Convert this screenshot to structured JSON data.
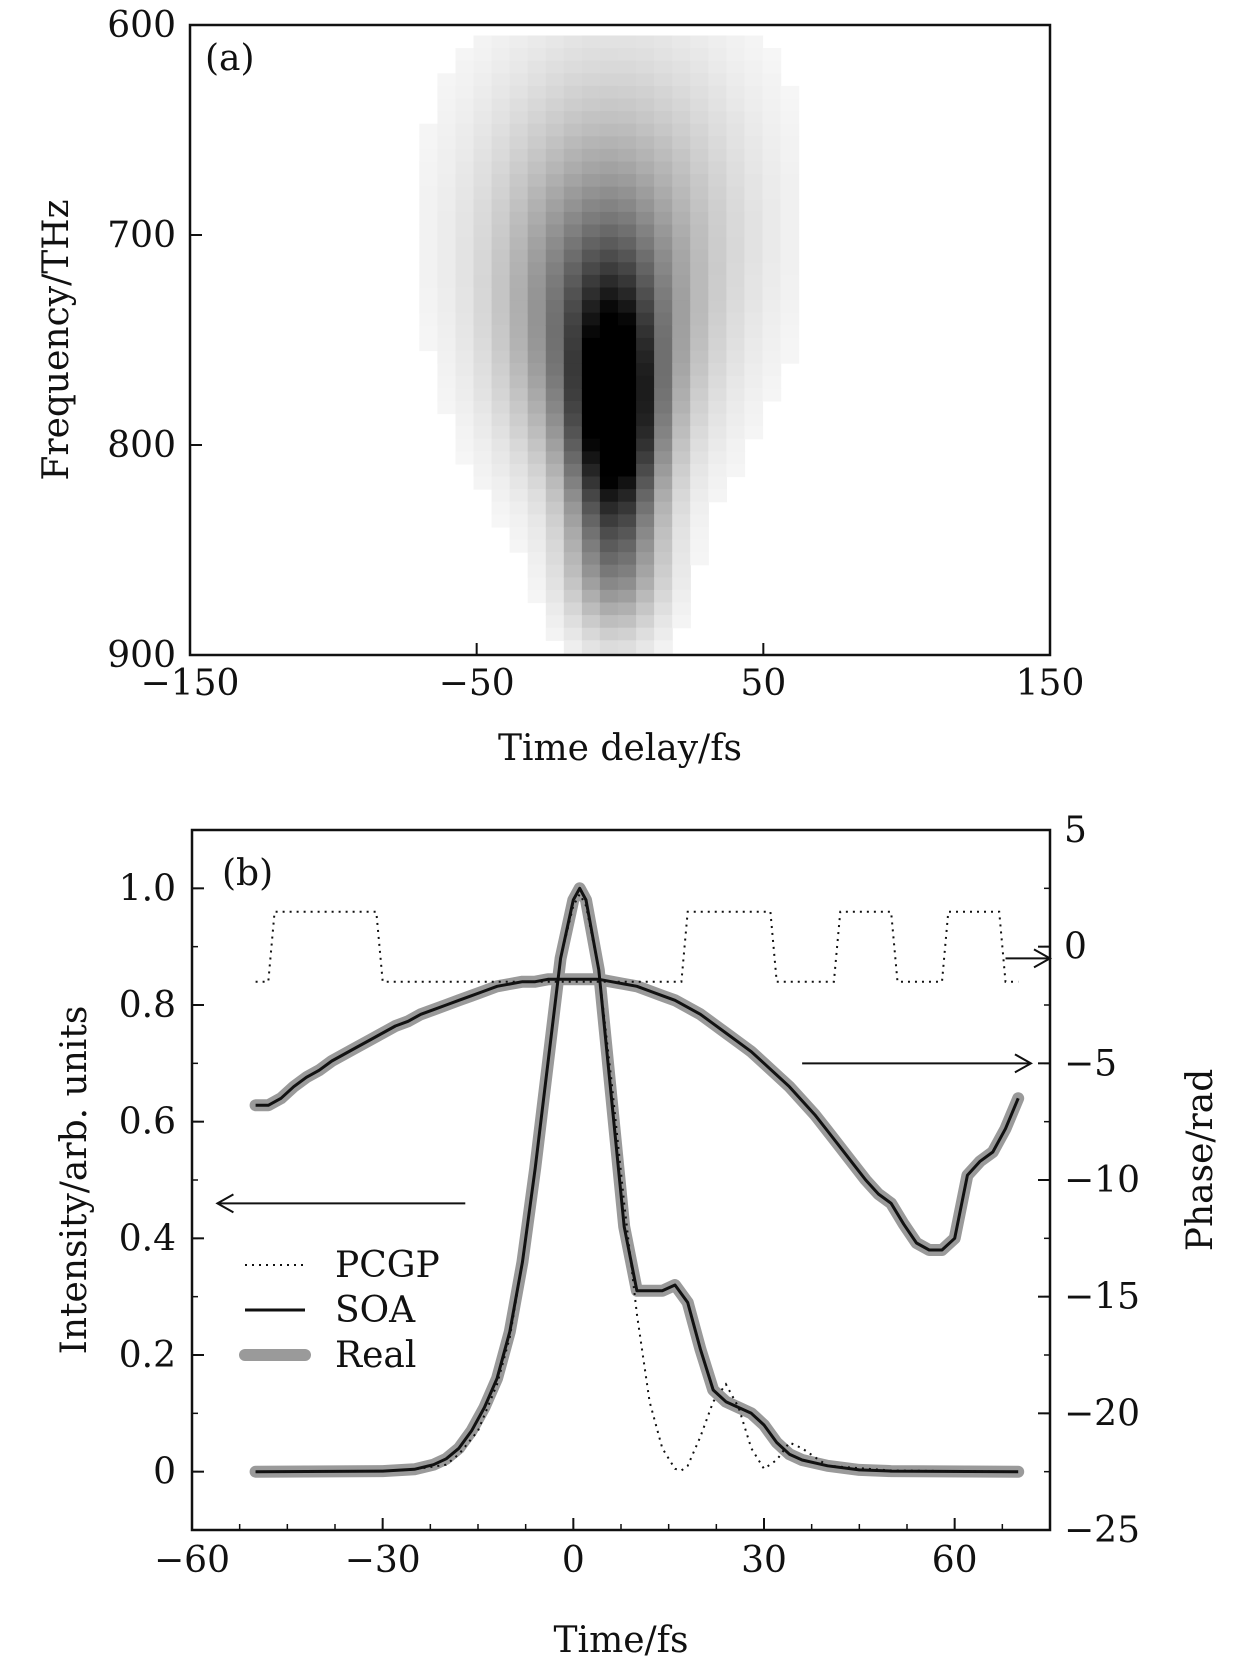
{
  "chart_data": [
    {
      "type": "heatmap",
      "panel_label": "(a)",
      "xlabel": "Time delay/fs",
      "ylabel": "Frequency/THz",
      "xlim": [
        -150,
        150
      ],
      "ylim": [
        600,
        900
      ],
      "y_inverted": true,
      "xticks": [
        -150,
        -50,
        50,
        150
      ],
      "xtick_labels": [
        "−150",
        "−50",
        "50",
        "150"
      ],
      "yticks": [
        600,
        700,
        800,
        900
      ],
      "ytick_labels": [
        "600",
        "700",
        "800",
        "900"
      ],
      "colormap": "white-to-black",
      "blobs": [
        {
          "t": -5,
          "f": 790,
          "st": 10,
          "sf": 42,
          "amp": 1.0
        },
        {
          "t": -10,
          "f": 745,
          "st": 20,
          "sf": 45,
          "amp": 0.45
        },
        {
          "t": -5,
          "f": 690,
          "st": 32,
          "sf": 58,
          "amp": 0.22
        },
        {
          "t": -5,
          "f": 860,
          "st": 12,
          "sf": 20,
          "amp": 0.18
        }
      ]
    },
    {
      "type": "line",
      "panel_label": "(b)",
      "xlabel": "Time/fs",
      "ylabel": "Intensity/arb. units",
      "y2label": "Phase/rad",
      "xlim": [
        -60,
        75
      ],
      "ylim": [
        -0.1,
        1.1
      ],
      "y2lim": [
        -25,
        5
      ],
      "xticks": [
        -60,
        -30,
        0,
        30,
        60
      ],
      "xtick_labels": [
        "−60",
        "−30",
        "0",
        "30",
        "60"
      ],
      "yticks": [
        0,
        0.2,
        0.4,
        0.6,
        0.8,
        1.0
      ],
      "ytick_labels": [
        "0",
        "0.2",
        "0.4",
        "0.6",
        "0.8",
        "1.0"
      ],
      "y2ticks": [
        5,
        0,
        -5,
        -10,
        -15,
        -20,
        -25
      ],
      "y2tick_labels": [
        "5",
        "0",
        "−5",
        "−10",
        "−15",
        "−20",
        "−25"
      ],
      "legend": {
        "position": "left-middle",
        "entries": [
          "PCGP",
          "SOA",
          "Real"
        ]
      },
      "series": [
        {
          "name": "PCGP",
          "quantity": "intensity",
          "axis": "left",
          "style": "dotted",
          "x": [
            -50,
            -30,
            -25,
            -20,
            -18,
            -15,
            -12,
            -10,
            -8,
            -6,
            -4,
            -2,
            0,
            1,
            2,
            4,
            6,
            8,
            10,
            12,
            14,
            16,
            17,
            18,
            20,
            22,
            24,
            26,
            28,
            30,
            32,
            34,
            36,
            40,
            50,
            70
          ],
          "y": [
            0,
            0.001,
            0.004,
            0.012,
            0.03,
            0.07,
            0.15,
            0.23,
            0.36,
            0.52,
            0.7,
            0.88,
            0.97,
            0.99,
            0.97,
            0.86,
            0.67,
            0.46,
            0.27,
            0.12,
            0.04,
            0.005,
            0.002,
            0.01,
            0.06,
            0.12,
            0.15,
            0.11,
            0.04,
            0.005,
            0.02,
            0.05,
            0.04,
            0.01,
            0.002,
            0.0
          ]
        },
        {
          "name": "SOA",
          "quantity": "intensity",
          "axis": "left",
          "style": "solid",
          "x": [
            -50,
            -30,
            -25,
            -22,
            -20,
            -18,
            -16,
            -14,
            -12,
            -10,
            -8,
            -6,
            -4,
            -2,
            0,
            1,
            2,
            4,
            6,
            8,
            10,
            12,
            14,
            16,
            18,
            20,
            22,
            24,
            26,
            28,
            30,
            32,
            34,
            36,
            40,
            45,
            50,
            70
          ],
          "y": [
            0,
            0.001,
            0.004,
            0.012,
            0.022,
            0.04,
            0.07,
            0.11,
            0.16,
            0.24,
            0.36,
            0.52,
            0.7,
            0.88,
            0.98,
            1.0,
            0.98,
            0.86,
            0.64,
            0.42,
            0.31,
            0.31,
            0.31,
            0.32,
            0.29,
            0.21,
            0.14,
            0.12,
            0.11,
            0.1,
            0.08,
            0.05,
            0.03,
            0.02,
            0.01,
            0.003,
            0.001,
            0.0
          ]
        },
        {
          "name": "Real",
          "quantity": "intensity",
          "axis": "left",
          "style": "thick-gray",
          "x": [
            -50,
            -30,
            -25,
            -22,
            -20,
            -18,
            -16,
            -14,
            -12,
            -10,
            -8,
            -6,
            -4,
            -2,
            0,
            1,
            2,
            4,
            6,
            8,
            10,
            12,
            14,
            16,
            18,
            20,
            22,
            24,
            26,
            28,
            30,
            32,
            34,
            36,
            40,
            45,
            50,
            70
          ],
          "y": [
            0,
            0.001,
            0.004,
            0.012,
            0.022,
            0.04,
            0.07,
            0.11,
            0.16,
            0.24,
            0.36,
            0.52,
            0.7,
            0.88,
            0.98,
            1.0,
            0.98,
            0.86,
            0.64,
            0.42,
            0.31,
            0.31,
            0.31,
            0.32,
            0.29,
            0.21,
            0.14,
            0.12,
            0.11,
            0.1,
            0.08,
            0.05,
            0.03,
            0.02,
            0.01,
            0.003,
            0.001,
            0.0
          ]
        },
        {
          "name": "PCGP",
          "quantity": "phase",
          "axis": "right",
          "style": "dotted",
          "x": [
            -50,
            -49,
            -48,
            -47,
            -32,
            -31,
            -30,
            -29,
            16,
            17,
            18,
            19,
            30,
            31,
            32,
            33,
            40,
            41,
            42,
            43,
            49,
            50,
            51,
            52,
            57,
            58,
            59,
            60,
            66,
            67,
            68,
            69,
            70
          ],
          "y": [
            -1.5,
            -1.5,
            -1.5,
            1.5,
            1.5,
            1.5,
            -1.5,
            -1.5,
            -1.5,
            -1.5,
            1.5,
            1.5,
            1.5,
            1.5,
            -1.5,
            -1.5,
            -1.5,
            -1.5,
            1.5,
            1.5,
            1.5,
            1.5,
            -1.5,
            -1.5,
            -1.5,
            -1.5,
            1.5,
            1.5,
            1.5,
            1.5,
            -1.5,
            -1.5,
            -1.5
          ]
        },
        {
          "name": "SOA",
          "quantity": "phase",
          "axis": "right",
          "style": "solid",
          "x": [
            -50,
            -48,
            -46,
            -44,
            -42,
            -40,
            -38,
            -36,
            -34,
            -32,
            -30,
            -28,
            -26,
            -24,
            -22,
            -20,
            -18,
            -16,
            -14,
            -12,
            -10,
            -8,
            -6,
            -4,
            -2,
            0,
            2,
            4,
            6,
            8,
            10,
            12,
            14,
            16,
            18,
            20,
            22,
            24,
            26,
            28,
            30,
            32,
            34,
            36,
            38,
            40,
            42,
            44,
            46,
            48,
            50,
            52,
            54,
            56,
            58,
            60,
            62,
            64,
            66,
            68,
            70
          ],
          "y": [
            -6.8,
            -6.8,
            -6.5,
            -6.0,
            -5.6,
            -5.3,
            -4.9,
            -4.6,
            -4.3,
            -4.0,
            -3.7,
            -3.4,
            -3.2,
            -2.9,
            -2.7,
            -2.5,
            -2.3,
            -2.1,
            -1.9,
            -1.7,
            -1.6,
            -1.5,
            -1.5,
            -1.4,
            -1.4,
            -1.4,
            -1.4,
            -1.4,
            -1.5,
            -1.6,
            -1.7,
            -1.9,
            -2.1,
            -2.3,
            -2.6,
            -2.9,
            -3.3,
            -3.7,
            -4.1,
            -4.5,
            -5.0,
            -5.5,
            -6.0,
            -6.6,
            -7.2,
            -7.9,
            -8.6,
            -9.3,
            -10.0,
            -10.6,
            -11.0,
            -11.9,
            -12.7,
            -13.0,
            -13.0,
            -12.5,
            -9.8,
            -9.2,
            -8.8,
            -7.8,
            -6.5
          ]
        },
        {
          "name": "Real",
          "quantity": "phase",
          "axis": "right",
          "style": "thick-gray",
          "x": [
            -50,
            -48,
            -46,
            -44,
            -42,
            -40,
            -38,
            -36,
            -34,
            -32,
            -30,
            -28,
            -26,
            -24,
            -22,
            -20,
            -18,
            -16,
            -14,
            -12,
            -10,
            -8,
            -6,
            -4,
            -2,
            0,
            2,
            4,
            6,
            8,
            10,
            12,
            14,
            16,
            18,
            20,
            22,
            24,
            26,
            28,
            30,
            32,
            34,
            36,
            38,
            40,
            42,
            44,
            46,
            48,
            50,
            52,
            54,
            56,
            58,
            60,
            62,
            64,
            66,
            68,
            70
          ],
          "y": [
            -6.8,
            -6.8,
            -6.5,
            -6.0,
            -5.6,
            -5.3,
            -4.9,
            -4.6,
            -4.3,
            -4.0,
            -3.7,
            -3.4,
            -3.2,
            -2.9,
            -2.7,
            -2.5,
            -2.3,
            -2.1,
            -1.9,
            -1.7,
            -1.6,
            -1.5,
            -1.5,
            -1.4,
            -1.4,
            -1.4,
            -1.4,
            -1.4,
            -1.5,
            -1.6,
            -1.7,
            -1.9,
            -2.1,
            -2.3,
            -2.6,
            -2.9,
            -3.3,
            -3.7,
            -4.1,
            -4.5,
            -5.0,
            -5.5,
            -6.0,
            -6.6,
            -7.2,
            -7.9,
            -8.6,
            -9.3,
            -10.0,
            -10.6,
            -11.0,
            -11.9,
            -12.7,
            -13.0,
            -13.0,
            -12.5,
            -9.8,
            -9.2,
            -8.8,
            -7.8,
            -6.5
          ]
        }
      ]
    }
  ]
}
